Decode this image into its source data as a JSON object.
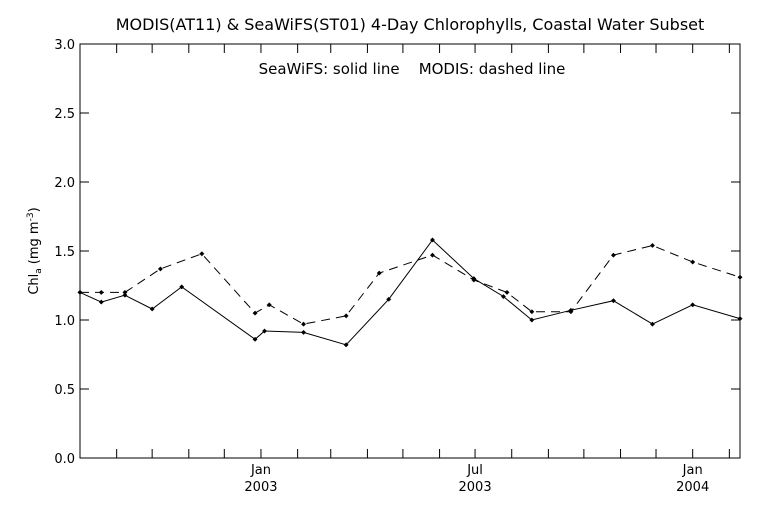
{
  "chart_data": {
    "type": "line",
    "title": "MODIS(AT11) & SeaWiFS(ST01) 4-Day Chlorophylls, Coastal Water Subset",
    "annotation": "SeaWiFS: solid line    MODIS: dashed line",
    "ylabel": {
      "main": "Chl",
      "sub": "a",
      "unit_open": "(mg m",
      "unit_sup": "-3",
      "unit_close": ")"
    },
    "xlim": [
      "2002-08-01",
      "2004-02-10"
    ],
    "ylim": [
      0.0,
      3.0
    ],
    "y_ticks": [
      "0.0",
      "0.5",
      "1.0",
      "1.5",
      "2.0",
      "2.5",
      "3.0"
    ],
    "x_tick_labels": [
      {
        "date": "2003-01-01",
        "month": "Jan",
        "year": "2003"
      },
      {
        "date": "2003-07-01",
        "month": "Jul",
        "year": "2003"
      },
      {
        "date": "2004-01-01",
        "month": "Jan",
        "year": "2004"
      }
    ],
    "x_minor_ticks": [
      "2002-09-01",
      "2002-10-01",
      "2002-11-01",
      "2002-12-01",
      "2003-01-01",
      "2003-02-01",
      "2003-03-01",
      "2003-04-01",
      "2003-05-01",
      "2003-06-01",
      "2003-07-01",
      "2003-08-01",
      "2003-09-01",
      "2003-10-01",
      "2003-11-01",
      "2003-12-01",
      "2004-01-01",
      "2004-02-01"
    ],
    "grid": false,
    "series": [
      {
        "name": "SeaWiFS",
        "style": "solid",
        "color": "#000000",
        "x": [
          "2002-08-01",
          "2002-08-19",
          "2002-09-08",
          "2002-10-01",
          "2002-10-26",
          "2002-12-27",
          "2003-01-04",
          "2003-02-06",
          "2003-03-14",
          "2003-04-19",
          "2003-05-26",
          "2003-06-30",
          "2003-07-25",
          "2003-08-18",
          "2003-09-20",
          "2003-10-26",
          "2003-11-28",
          "2004-01-01",
          "2004-02-10"
        ],
        "y": [
          1.2,
          1.13,
          1.18,
          1.08,
          1.24,
          0.86,
          0.92,
          0.91,
          0.82,
          1.15,
          1.58,
          1.3,
          1.17,
          1.0,
          1.07,
          1.14,
          0.97,
          1.11,
          1.01
        ]
      },
      {
        "name": "MODIS",
        "style": "dashed",
        "color": "#000000",
        "x": [
          "2002-08-01",
          "2002-08-19",
          "2002-09-08",
          "2002-10-08",
          "2002-11-12",
          "2002-12-27",
          "2003-01-08",
          "2003-02-06",
          "2003-03-14",
          "2003-04-11",
          "2003-05-26",
          "2003-06-30",
          "2003-07-28",
          "2003-08-18",
          "2003-09-20",
          "2003-10-26",
          "2003-11-28",
          "2004-01-01",
          "2004-02-10"
        ],
        "y": [
          1.2,
          1.2,
          1.2,
          1.37,
          1.48,
          1.05,
          1.11,
          0.97,
          1.03,
          1.34,
          1.47,
          1.29,
          1.2,
          1.06,
          1.06,
          1.47,
          1.54,
          1.42,
          1.31
        ]
      }
    ]
  }
}
